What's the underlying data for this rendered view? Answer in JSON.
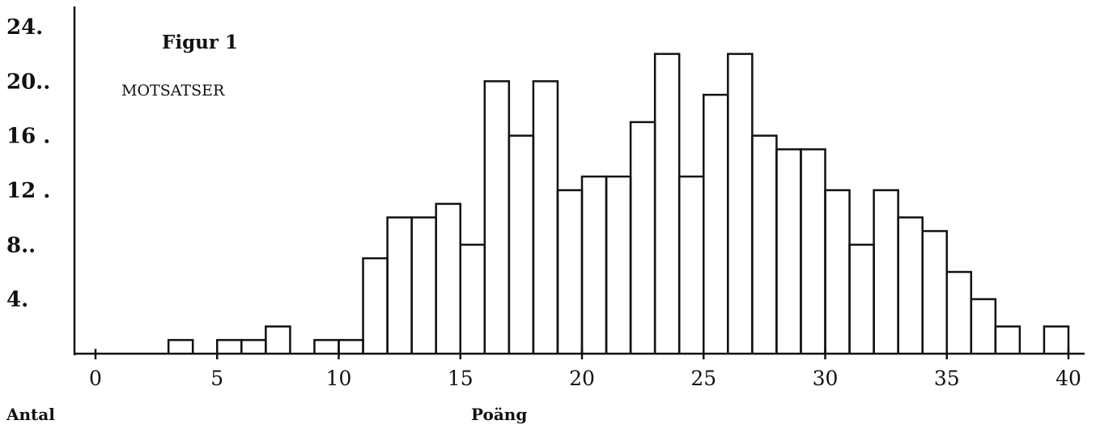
{
  "chart_data": {
    "type": "bar",
    "title": "Figur 1",
    "subtitle": "MOTSATSER",
    "xlabel": "Poäng",
    "ylabel": "Antal",
    "xlim": [
      0,
      40
    ],
    "ylim": [
      0,
      24
    ],
    "xticks": [
      "0",
      "5",
      "10",
      "15",
      "20",
      "25",
      "30",
      "35",
      "40"
    ],
    "yticks": [
      {
        "value": 4,
        "label": "4."
      },
      {
        "value": 8,
        "label": "8.."
      },
      {
        "value": 12,
        "label": "12 ."
      },
      {
        "value": 16,
        "label": "16 ."
      },
      {
        "value": 20,
        "label": "20.."
      },
      {
        "value": 24,
        "label": "24."
      }
    ],
    "categories": [
      0,
      1,
      2,
      3,
      4,
      5,
      6,
      7,
      8,
      9,
      10,
      11,
      12,
      13,
      14,
      15,
      16,
      17,
      18,
      19,
      20,
      21,
      22,
      23,
      24,
      25,
      26,
      27,
      28,
      29,
      30,
      31,
      32,
      33,
      34,
      35,
      36,
      37,
      38,
      39
    ],
    "values": [
      0,
      0,
      0,
      1,
      0,
      1,
      1,
      2,
      0,
      1,
      1,
      7,
      10,
      10,
      11,
      8,
      20,
      16,
      20,
      12,
      13,
      13,
      17,
      22,
      13,
      19,
      22,
      16,
      15,
      15,
      12,
      8,
      12,
      10,
      9,
      6,
      4,
      2,
      0,
      2
    ],
    "grid": false
  }
}
